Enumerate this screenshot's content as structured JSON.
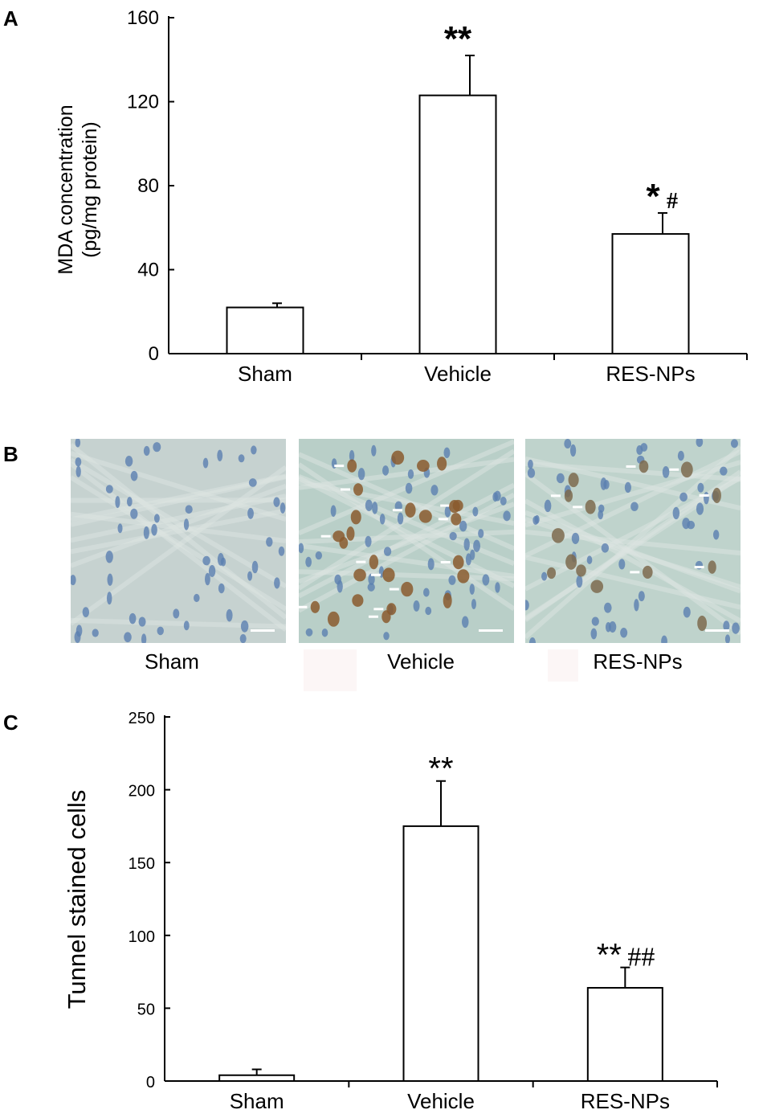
{
  "panel_letters": {
    "a": "A",
    "b": "B",
    "c": "C"
  },
  "chart_data": [
    {
      "type": "bar",
      "panel": "A",
      "ylabel_lines": [
        "MDA  concentration",
        "(pg/mg  protein)"
      ],
      "categories": [
        "Sham",
        "Vehicle",
        "RES-NPs"
      ],
      "values": [
        22,
        123,
        57
      ],
      "errors": [
        2,
        19,
        10
      ],
      "significance": [
        [],
        [
          "**"
        ],
        [
          "*",
          "#"
        ]
      ],
      "yticks": [
        0,
        40,
        80,
        120,
        160
      ],
      "ylim": [
        0,
        160
      ],
      "bar_fill": "#ffffff",
      "grid": false
    },
    {
      "type": "bar",
      "panel": "C",
      "ylabel": "Tunnel stained cells",
      "categories": [
        "Sham",
        "Vehicle",
        "RES-NPs"
      ],
      "values": [
        4,
        175,
        64
      ],
      "errors": [
        4,
        31,
        14
      ],
      "significance": [
        [],
        [
          "**"
        ],
        [
          "**",
          "##"
        ]
      ],
      "yticks": [
        0,
        50,
        100,
        150,
        200,
        250
      ],
      "ylim": [
        0,
        250
      ],
      "bar_fill": "#ffffff",
      "grid": false
    }
  ],
  "micrographs": {
    "panel": "B",
    "items": [
      {
        "label": "Sham",
        "stain_color": "#5b7fb0",
        "background": "#c6d2d0"
      },
      {
        "label": "Vehicle",
        "stain_color": "#8a5a2e",
        "background": "#b9cfc8"
      },
      {
        "label": "RES-NPs",
        "stain_color": "#7d6a4e",
        "background": "#bfd3cc"
      }
    ]
  }
}
